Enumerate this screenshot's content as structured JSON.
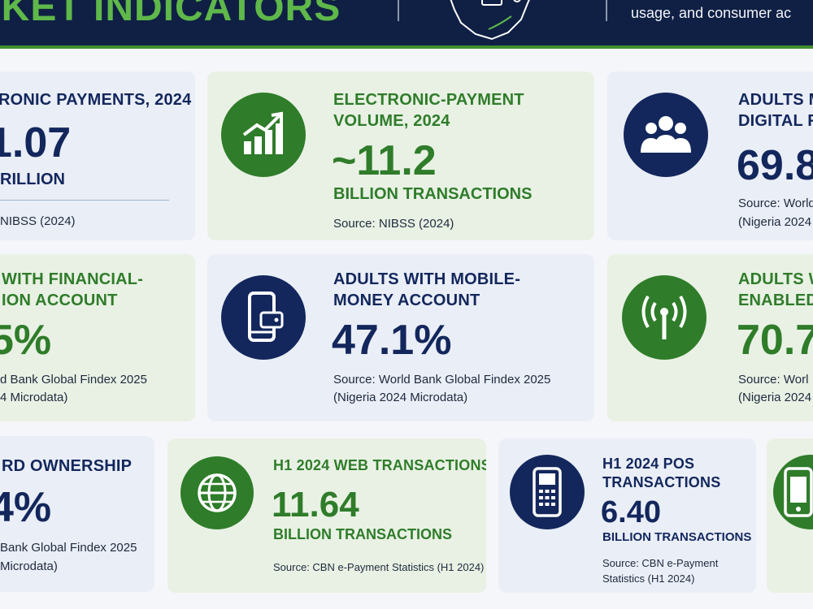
{
  "header": {
    "title": "RKET INDICATORS",
    "tagline": "usage, and consumer ac"
  },
  "cards": {
    "c1": {
      "label": "RONIC PAYMENTS, 2024",
      "value": "1.07",
      "unit": "RILLION",
      "source": "NIBSS (2024)"
    },
    "c2": {
      "label_1": "ELECTRONIC-PAYMENT",
      "label_2": "VOLUME, 2024",
      "value": "~11.2",
      "unit": "BILLION TRANSACTIONS",
      "source": "Source: NIBSS (2024)"
    },
    "c3": {
      "label_1": "ADULTS M",
      "label_2": "DIGITAL F",
      "value": "69.8",
      "source_1": "Source: World",
      "source_2": "(Nigeria 2024"
    },
    "c4": {
      "label_1": "WITH FINANCIAL-",
      "label_2": "ION ACCOUNT",
      "value": "5%",
      "source_1": "d Bank Global Findex 2025",
      "source_2": "4 Microdata)"
    },
    "c5": {
      "label_1": "ADULTS WITH MOBILE-",
      "label_2": "MONEY ACCOUNT",
      "value": "47.1%",
      "source_1": "Source: World Bank Global Findex 2025",
      "source_2": "(Nigeria 2024 Microdata)"
    },
    "c6": {
      "label_1": "ADULTS W",
      "label_2": "ENABLED",
      "value": "70.7",
      "source_1": "Source: Worl",
      "source_2": "(Nigeria 2024"
    },
    "c7": {
      "label": "RD OWNERSHIP",
      "value": "4%",
      "source_1": "Bank Global Findex 2025",
      "source_2": "Microdata)"
    },
    "c8": {
      "label": "H1 2024 WEB TRANSACTIONS",
      "value": "11.64",
      "unit": "BILLION TRANSACTIONS",
      "source": "Source: CBN e-Payment Statistics (H1 2024)"
    },
    "c9": {
      "label_1": "H1 2024 POS",
      "label_2": "TRANSACTIONS",
      "value": "6.40",
      "unit": "BILLION TRANSACTIONS",
      "source_1": "Source: CBN e-Payment",
      "source_2": "Statistics (H1 2024)"
    }
  },
  "icons": [
    "bar-chart-icon",
    "people-icon",
    "mobile-wallet-icon",
    "signal-tower-icon",
    "globe-icon",
    "pos-terminal-icon",
    "tablet-icon"
  ],
  "colors": {
    "navy": "#13275c",
    "green": "#2f7d2a",
    "header_bg": "#0f2044",
    "title_green": "#5fb84a"
  }
}
